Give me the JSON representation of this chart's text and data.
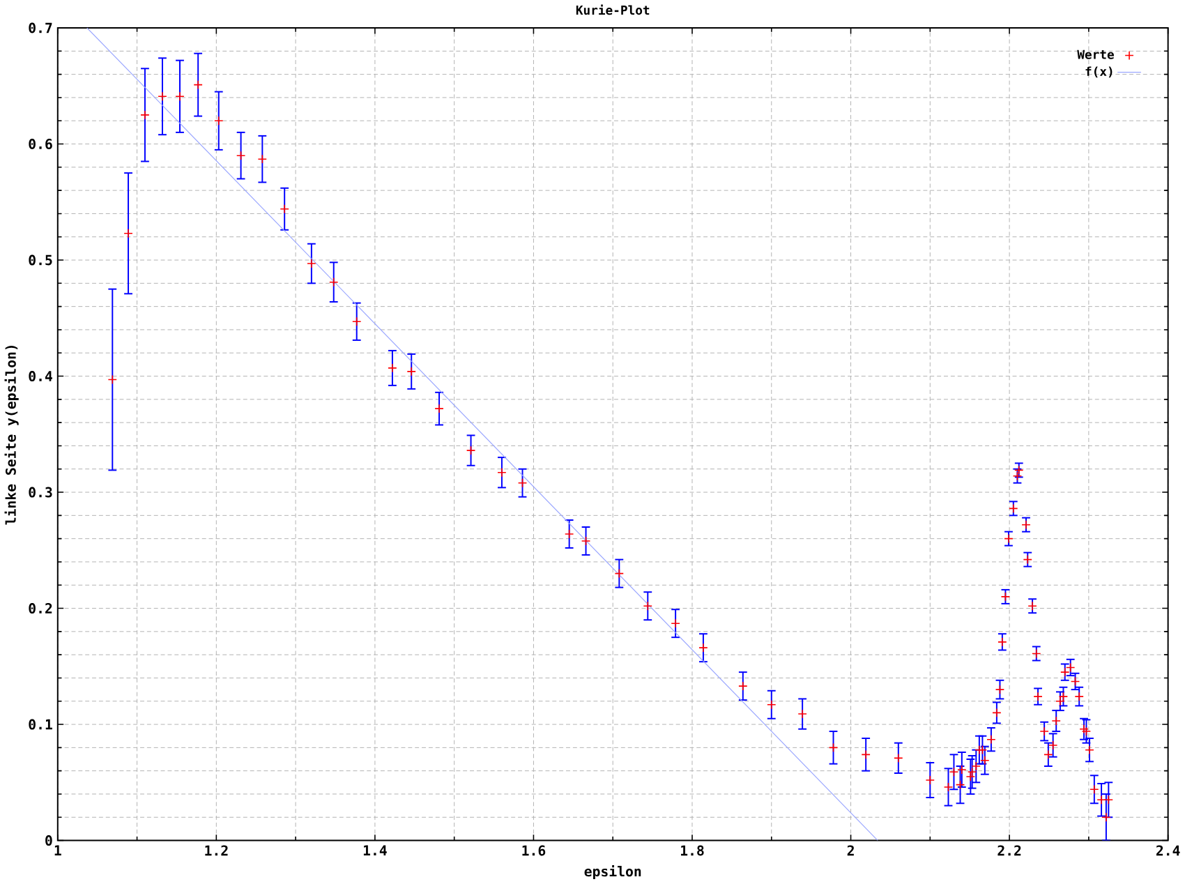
{
  "chart_data": {
    "type": "scatter",
    "title": "Kurie-Plot",
    "xlabel": "epsilon",
    "ylabel": "linke Seite y(epsilon)",
    "xlim": [
      1,
      2.4
    ],
    "ylim": [
      0,
      0.7
    ],
    "xticks": [
      1,
      1.2,
      1.4,
      1.6,
      1.8,
      2,
      2.2,
      2.4
    ],
    "yticks": [
      0,
      0.1,
      0.2,
      0.3,
      0.4,
      0.5,
      0.6,
      0.7
    ],
    "grid": true,
    "legend": "top right",
    "series": [
      {
        "name": "Werte",
        "marker": "cross",
        "color": "#ff0000",
        "x": [
          1.069,
          1.089,
          1.11,
          1.132,
          1.154,
          1.177,
          1.203,
          1.231,
          1.258,
          1.286,
          1.32,
          1.348,
          1.377,
          1.422,
          1.446,
          1.481,
          1.521,
          1.56,
          1.586,
          1.645,
          1.666,
          1.708,
          1.744,
          1.779,
          1.814,
          1.864,
          1.9,
          1.939,
          1.978,
          2.019,
          2.06,
          2.1,
          2.123,
          2.13,
          2.138,
          2.14,
          2.151,
          2.153,
          2.158,
          2.162,
          2.166,
          2.169,
          2.177,
          2.184,
          2.188,
          2.191,
          2.195,
          2.199,
          2.205,
          2.21,
          2.212,
          2.221,
          2.223,
          2.229,
          2.234,
          2.236,
          2.244,
          2.249,
          2.255,
          2.259,
          2.264,
          2.268,
          2.27,
          2.277,
          2.283,
          2.288,
          2.294,
          2.297,
          2.301,
          2.307,
          2.316,
          2.322,
          2.325
        ],
        "values": [
          0.397,
          0.523,
          0.625,
          0.641,
          0.641,
          0.651,
          0.62,
          0.59,
          0.587,
          0.544,
          0.497,
          0.481,
          0.447,
          0.407,
          0.404,
          0.372,
          0.336,
          0.317,
          0.308,
          0.264,
          0.258,
          0.23,
          0.202,
          0.187,
          0.166,
          0.133,
          0.117,
          0.109,
          0.08,
          0.074,
          0.071,
          0.052,
          0.046,
          0.059,
          0.048,
          0.061,
          0.055,
          0.059,
          0.064,
          0.078,
          0.078,
          0.069,
          0.087,
          0.11,
          0.13,
          0.171,
          0.21,
          0.26,
          0.286,
          0.314,
          0.319,
          0.272,
          0.242,
          0.202,
          0.161,
          0.124,
          0.094,
          0.074,
          0.082,
          0.103,
          0.12,
          0.124,
          0.145,
          0.149,
          0.137,
          0.124,
          0.096,
          0.094,
          0.078,
          0.044,
          0.035,
          0.02,
          0.035
        ],
        "errors": [
          0.078,
          0.052,
          0.04,
          0.033,
          0.031,
          0.027,
          0.025,
          0.02,
          0.02,
          0.018,
          0.017,
          0.017,
          0.016,
          0.015,
          0.015,
          0.014,
          0.013,
          0.013,
          0.012,
          0.012,
          0.012,
          0.012,
          0.012,
          0.012,
          0.012,
          0.012,
          0.012,
          0.013,
          0.014,
          0.014,
          0.013,
          0.015,
          0.016,
          0.015,
          0.016,
          0.015,
          0.015,
          0.014,
          0.014,
          0.012,
          0.012,
          0.012,
          0.01,
          0.009,
          0.008,
          0.007,
          0.006,
          0.006,
          0.006,
          0.006,
          0.006,
          0.006,
          0.006,
          0.006,
          0.006,
          0.007,
          0.008,
          0.01,
          0.01,
          0.009,
          0.008,
          0.008,
          0.007,
          0.007,
          0.007,
          0.008,
          0.009,
          0.01,
          0.01,
          0.012,
          0.014,
          0.02,
          0.015
        ]
      },
      {
        "name": "f(x)",
        "type": "line",
        "color": "#9aa6ff",
        "x": [
          1.037,
          2.034
        ],
        "values": [
          0.7,
          0
        ]
      }
    ]
  }
}
